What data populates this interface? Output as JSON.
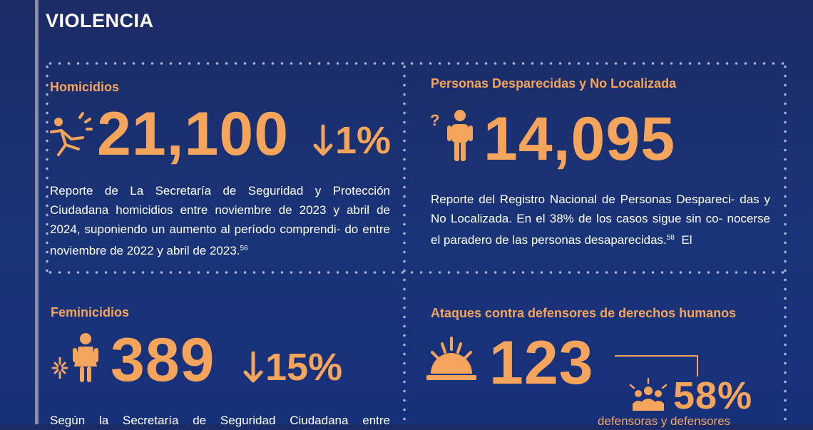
{
  "page": {
    "title": "VIOLENCIA"
  },
  "homicidios": {
    "title": "Homicidios",
    "value": "21,100",
    "change": "1%",
    "text": "Reporte de La Secretaría de Seguridad y Protección Ciudadana homicidios entre noviembre de 2023 y abril de 2024, suponiendo un aumento al período comprendi- do entre noviembre de 2022 y abril de 2023.",
    "footnote": "56",
    "icon": "person-falling-icon"
  },
  "desaparecidas": {
    "title": "Personas Desparecidas y No Localizada",
    "value": "14,095",
    "text": "Reporte del Registro Nacional de Personas Despareci- das y No Localizada. En el 38% de los casos sigue sin co- nocerse el paradero de las personas desaparecidas.",
    "footnote": "58",
    "text_tail": "El",
    "icon": "missing-person-icon"
  },
  "feminicidios": {
    "title": "Feminicidios",
    "value": "389",
    "change": "15%",
    "text": "Según la Secretaría de Seguridad Ciudadana entre",
    "icon": "woman-violence-icon"
  },
  "ataques": {
    "title": "Ataques contra defensores de derechos humanos",
    "value": "123",
    "percent": "58%",
    "percent_label": "defensoras y defensores",
    "icon": "sunset-icon",
    "group_icon": "group-people-icon"
  },
  "colors": {
    "accent": "#f5a45b",
    "background": "#1b2b66"
  }
}
